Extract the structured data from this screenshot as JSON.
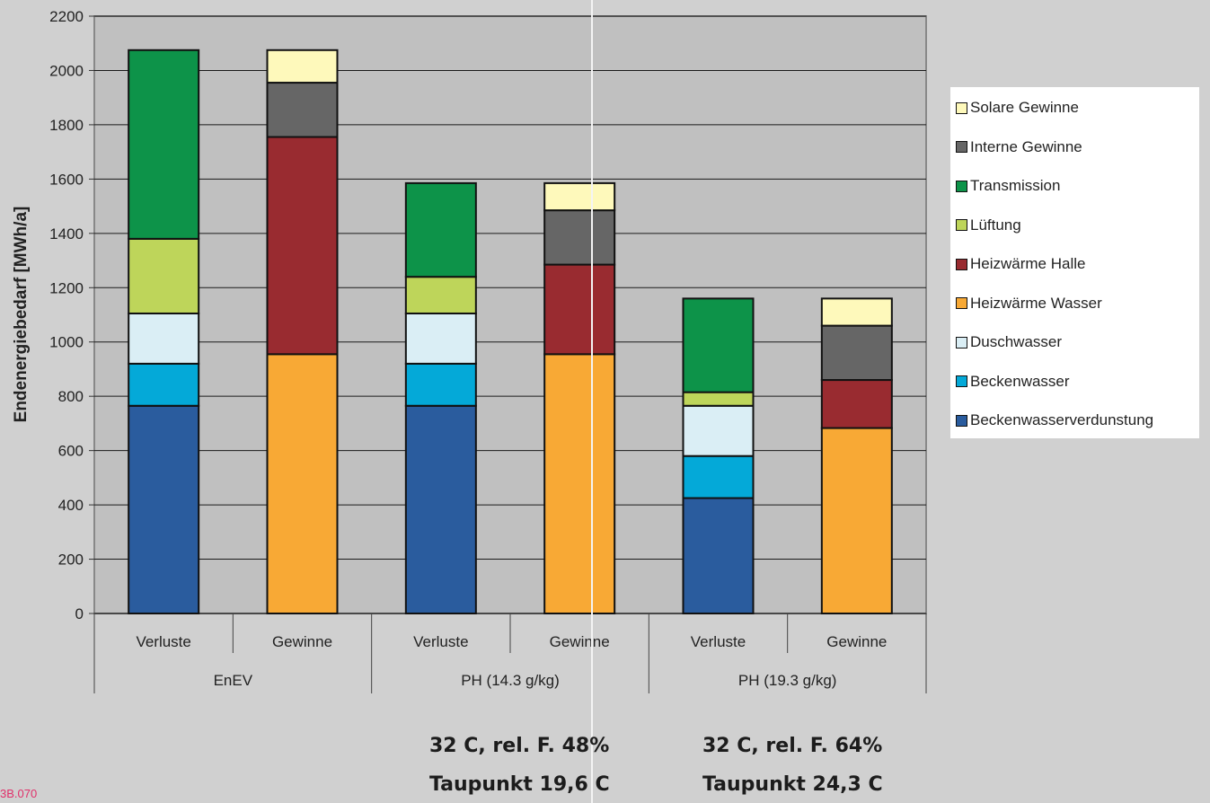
{
  "chart_data": {
    "type": "bar",
    "stacked": true,
    "ylabel": "Endenergiebedarf [MWh/a]",
    "ylim": [
      0,
      2200
    ],
    "yticks": [
      0,
      200,
      400,
      600,
      800,
      1000,
      1200,
      1400,
      1600,
      1800,
      2000,
      2200
    ],
    "grid": true,
    "legend_position": "right",
    "groups": [
      "EnEV",
      "PH (14.3 g/kg)",
      "PH (19.3 g/kg)"
    ],
    "categories": [
      "Verluste",
      "Gewinne",
      "Verluste",
      "Gewinne",
      "Verluste",
      "Gewinne"
    ],
    "series": [
      {
        "name": "Beckenwasserverdunstung",
        "color": "#2a5c9e",
        "values": [
          765,
          0,
          765,
          0,
          425,
          0
        ]
      },
      {
        "name": "Beckenwasser",
        "color": "#04a9d8",
        "values": [
          155,
          0,
          155,
          0,
          155,
          0
        ]
      },
      {
        "name": "Duschwasser",
        "color": "#daeef5",
        "values": [
          185,
          0,
          185,
          0,
          185,
          0
        ]
      },
      {
        "name": "Heizwärme Wasser",
        "color": "#f8a935",
        "values": [
          0,
          955,
          0,
          955,
          0,
          683
        ]
      },
      {
        "name": "Heizwärme Halle",
        "color": "#992b30",
        "values": [
          0,
          800,
          0,
          330,
          0,
          177
        ]
      },
      {
        "name": "Lüftung",
        "color": "#bed55a",
        "values": [
          275,
          0,
          135,
          0,
          50,
          0
        ]
      },
      {
        "name": "Transmission",
        "color": "#0d9349",
        "values": [
          695,
          0,
          345,
          0,
          345,
          0
        ]
      },
      {
        "name": "Interne Gewinne",
        "color": "#666666",
        "values": [
          0,
          200,
          0,
          200,
          0,
          200
        ]
      },
      {
        "name": "Solare Gewinne",
        "color": "#fef9bb",
        "values": [
          0,
          120,
          0,
          100,
          0,
          100
        ]
      }
    ],
    "legend_order": [
      "Solare Gewinne",
      "Interne Gewinne",
      "Transmission",
      "Lüftung",
      "Heizwärme Halle",
      "Heizwärme Wasser",
      "Duschwasser",
      "Beckenwasser",
      "Beckenwasserverdunstung"
    ]
  },
  "notes": {
    "ph143_line1": "32 C, rel. F. 48%",
    "ph143_line2": "Taupunkt 19,6 C",
    "ph193_line1": "32 C, rel. F. 64%",
    "ph193_line2": "Taupunkt 24,3 C"
  },
  "footer_code": "3B.070"
}
